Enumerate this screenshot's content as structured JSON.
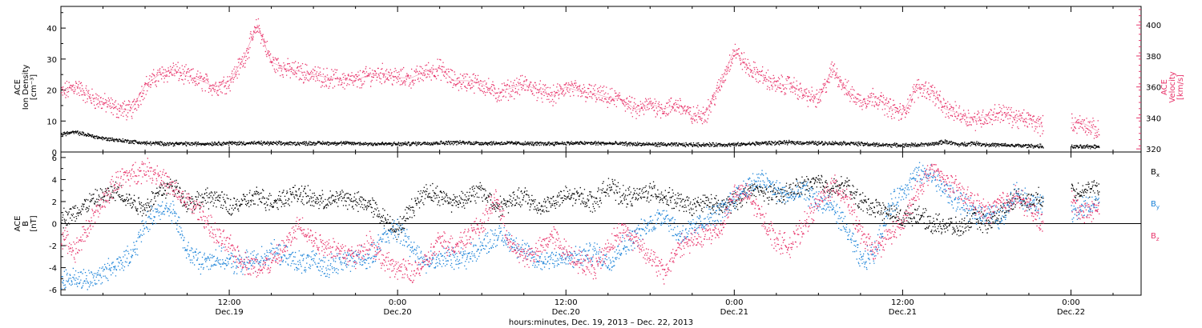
{
  "colors": {
    "black": "#000000",
    "pink": "#e8336a",
    "blue": "#1a82d8"
  },
  "bottom_title": "hours:minutes, Dec. 19, 2013 – Dec. 22, 2013",
  "time_ticks": [
    {
      "hour": 12,
      "time": "12:00",
      "date": "Dec.19"
    },
    {
      "hour": 24,
      "time": "0:00",
      "date": "Dec.20"
    },
    {
      "hour": 36,
      "time": "12:00",
      "date": "Dec.20"
    },
    {
      "hour": 48,
      "time": "0:00",
      "date": "Dec.21"
    },
    {
      "hour": 60,
      "time": "12:00",
      "date": "Dec.21"
    },
    {
      "hour": 72,
      "time": "0:00",
      "date": "Dec.22"
    }
  ],
  "chart_data": [
    {
      "type": "line",
      "panel": "plasma",
      "x_unit": "hours since Dec. 19, 2013 00:00",
      "xlim": [
        0,
        77
      ],
      "left_axis": {
        "label_lines": [
          "ACE",
          "Ion Density",
          "[cm⁻³]"
        ],
        "ylim": [
          0,
          47
        ],
        "ticks": [
          "0",
          "10",
          "20",
          "30",
          "40"
        ],
        "tick_values": [
          0,
          10,
          20,
          30,
          40
        ]
      },
      "right_axis": {
        "label_lines": [
          "ACE",
          "Velocity",
          "[km/s]"
        ],
        "ylim": [
          318,
          412
        ],
        "ticks": [
          "320",
          "340",
          "360",
          "380",
          "400"
        ],
        "tick_values": [
          320,
          340,
          360,
          380,
          400
        ]
      },
      "series": [
        {
          "axis": "left",
          "color": "black",
          "x": [
            0,
            1,
            2,
            3,
            4,
            5,
            6,
            8,
            10,
            12,
            14,
            16,
            18,
            20,
            22,
            24,
            26,
            28,
            30,
            32,
            34,
            36,
            38,
            40,
            42,
            44,
            46,
            48,
            50,
            52,
            54,
            56,
            58,
            60,
            62,
            63,
            64,
            65,
            66,
            68,
            70,
            71,
            72,
            73,
            74
          ],
          "y": [
            6,
            6.5,
            5.5,
            4.5,
            4,
            3.5,
            3,
            2.8,
            2.8,
            3,
            3,
            2.9,
            3,
            3,
            2.8,
            2.7,
            3,
            3.2,
            3,
            3,
            2.8,
            3,
            3,
            2.8,
            2.6,
            2.5,
            2.5,
            2.5,
            3,
            3.2,
            3,
            3,
            2.5,
            2.3,
            2.6,
            3.5,
            2.5,
            3,
            2.5,
            2.2,
            2,
            null,
            1.8,
            1.8,
            2
          ]
        },
        {
          "axis": "right",
          "color": "pink",
          "x": [
            0,
            1,
            2,
            3,
            4,
            5,
            6,
            7,
            8,
            9,
            10,
            11,
            12,
            13,
            14,
            15,
            16,
            17,
            18,
            19,
            20,
            21,
            22,
            23,
            24,
            25,
            26,
            27,
            28,
            29,
            30,
            31,
            32,
            33,
            34,
            35,
            36,
            37,
            38,
            39,
            40,
            41,
            42,
            43,
            44,
            45,
            46,
            47,
            48,
            49,
            50,
            51,
            52,
            53,
            54,
            55,
            56,
            57,
            58,
            59,
            60,
            61,
            62,
            63,
            64,
            65,
            66,
            67,
            68,
            69,
            70,
            71,
            72,
            73,
            74
          ],
          "y": [
            356,
            361,
            354,
            350,
            346,
            345,
            361,
            368,
            371,
            367,
            364,
            360,
            364,
            378,
            400,
            376,
            372,
            370,
            368,
            366,
            365,
            364,
            368,
            369,
            366,
            366,
            370,
            372,
            364,
            364,
            362,
            356,
            359,
            362,
            358,
            354,
            360,
            357,
            356,
            353,
            352,
            345,
            349,
            346,
            349,
            341,
            344,
            362,
            384,
            372,
            367,
            361,
            362,
            355,
            352,
            372,
            358,
            351,
            354,
            347,
            343,
            360,
            358,
            346,
            343,
            339,
            341,
            344,
            340,
            339,
            335,
            null,
            337,
            336,
            331
          ]
        }
      ]
    },
    {
      "type": "line",
      "panel": "magnetic-field",
      "x_unit": "hours since Dec. 19, 2013 00:00",
      "xlim": [
        0,
        77
      ],
      "ylabel_lines": [
        "ACE",
        "B",
        "[nT]"
      ],
      "ylim": [
        -6.5,
        6.5
      ],
      "yticks": [
        "-6",
        "-4",
        "-2",
        "0",
        "2",
        "4",
        "6"
      ],
      "ytick_values": [
        -6,
        -4,
        -2,
        0,
        2,
        4,
        6
      ],
      "legend": [
        {
          "base": "B",
          "sub": "x",
          "color": "black"
        },
        {
          "base": "B",
          "sub": "y",
          "color": "blue"
        },
        {
          "base": "B",
          "sub": "z",
          "color": "pink"
        }
      ],
      "series": [
        {
          "name": "Bx",
          "color": "black",
          "x": [
            0,
            1,
            2,
            3,
            4,
            5,
            6,
            7,
            8,
            9,
            10,
            11,
            12,
            13,
            14,
            15,
            16,
            17,
            18,
            19,
            20,
            21,
            22,
            23,
            24,
            25,
            26,
            27,
            28,
            29,
            30,
            31,
            32,
            33,
            34,
            35,
            36,
            37,
            38,
            39,
            40,
            41,
            42,
            43,
            44,
            45,
            46,
            47,
            48,
            49,
            50,
            51,
            52,
            53,
            54,
            55,
            56,
            57,
            58,
            59,
            60,
            61,
            62,
            63,
            64,
            65,
            66,
            67,
            68,
            69,
            70,
            71,
            72,
            73,
            74
          ],
          "y": [
            0.5,
            1,
            2,
            2.5,
            3,
            2,
            1.5,
            3,
            3.5,
            2,
            2.2,
            2.5,
            1.5,
            2,
            2.5,
            2,
            2.5,
            2.8,
            2.2,
            2,
            2.5,
            2,
            1.8,
            0.5,
            -0.5,
            1.5,
            3,
            2.5,
            2,
            2.5,
            3,
            1.5,
            2,
            2.5,
            1.5,
            2,
            2.5,
            2.5,
            2,
            3.5,
            2.5,
            2.5,
            3,
            2.5,
            2,
            1.5,
            2,
            1.5,
            2,
            3,
            3,
            2.5,
            3,
            3.5,
            3.8,
            3.2,
            3.5,
            2,
            1.5,
            1,
            0.5,
            1,
            0,
            0,
            -0.5,
            0.5,
            0,
            1,
            2.5,
            2,
            2.5,
            null,
            3,
            3.2,
            3
          ]
        },
        {
          "name": "By",
          "color": "blue",
          "x": [
            0,
            1,
            2,
            3,
            4,
            5,
            6,
            7,
            8,
            9,
            10,
            11,
            12,
            13,
            14,
            15,
            16,
            17,
            18,
            19,
            20,
            21,
            22,
            23,
            24,
            25,
            26,
            27,
            28,
            29,
            30,
            31,
            32,
            33,
            34,
            35,
            36,
            37,
            38,
            39,
            40,
            41,
            42,
            43,
            44,
            45,
            46,
            47,
            48,
            49,
            50,
            51,
            52,
            53,
            54,
            55,
            56,
            57,
            58,
            59,
            60,
            61,
            62,
            63,
            64,
            65,
            66,
            67,
            68,
            69,
            70,
            71,
            72,
            73,
            74
          ],
          "y": [
            -5,
            -5,
            -5,
            -4.5,
            -3.5,
            -3,
            0,
            1.5,
            1,
            -2.5,
            -3.5,
            -3,
            -3.5,
            -3.5,
            -3.2,
            -2.5,
            -3,
            -3.5,
            -3.5,
            -3.8,
            -3.5,
            -3,
            -3.2,
            -1,
            -0.5,
            -2,
            -3.5,
            -3.2,
            -3,
            -3,
            -2,
            -1,
            -1.5,
            -2.5,
            -3.5,
            -3,
            -3.2,
            -3,
            -2.5,
            -3.5,
            -2,
            -1,
            0,
            1,
            -1,
            -0.5,
            0.5,
            1,
            2.5,
            3.5,
            4,
            3,
            2.5,
            3,
            2,
            1.5,
            -0.5,
            -3.5,
            -2.5,
            1.5,
            3,
            4.5,
            4.5,
            3,
            2,
            1,
            1,
            0.5,
            3,
            2,
            1.5,
            null,
            1,
            1.5,
            2
          ]
        },
        {
          "name": "Bz",
          "color": "pink",
          "x": [
            0,
            1,
            2,
            3,
            4,
            5,
            6,
            7,
            8,
            9,
            10,
            11,
            12,
            13,
            14,
            15,
            16,
            17,
            18,
            19,
            20,
            21,
            22,
            23,
            24,
            25,
            26,
            27,
            28,
            29,
            30,
            31,
            32,
            33,
            34,
            35,
            36,
            37,
            38,
            39,
            40,
            41,
            42,
            43,
            44,
            45,
            46,
            47,
            48,
            49,
            50,
            51,
            52,
            53,
            54,
            55,
            56,
            57,
            58,
            59,
            60,
            61,
            62,
            63,
            64,
            65,
            66,
            67,
            68,
            69,
            70,
            71,
            72,
            73,
            74
          ],
          "y": [
            -1,
            -2.5,
            0,
            2,
            4,
            4.5,
            5,
            4.5,
            3,
            2,
            1,
            -1,
            -2,
            -3.5,
            -4,
            -3.5,
            -2,
            0,
            -1.5,
            -2,
            -2.5,
            -3,
            -1.5,
            -3.5,
            -4,
            -4.5,
            -3.5,
            -1.5,
            -2,
            -1,
            0,
            2.5,
            -2,
            -3,
            -2.5,
            -1,
            -2.5,
            -3.5,
            -4,
            -2,
            -0.5,
            -1.5,
            -3,
            -4.5,
            -2,
            -1.5,
            -1,
            -0.5,
            3,
            2.5,
            0.5,
            -1.5,
            -2,
            0,
            2,
            3.5,
            2.5,
            -1,
            -2.5,
            -1,
            0,
            3,
            5,
            4,
            3,
            2,
            1,
            2,
            2.5,
            1.5,
            0,
            null,
            2,
            1,
            1.5
          ]
        }
      ]
    }
  ]
}
